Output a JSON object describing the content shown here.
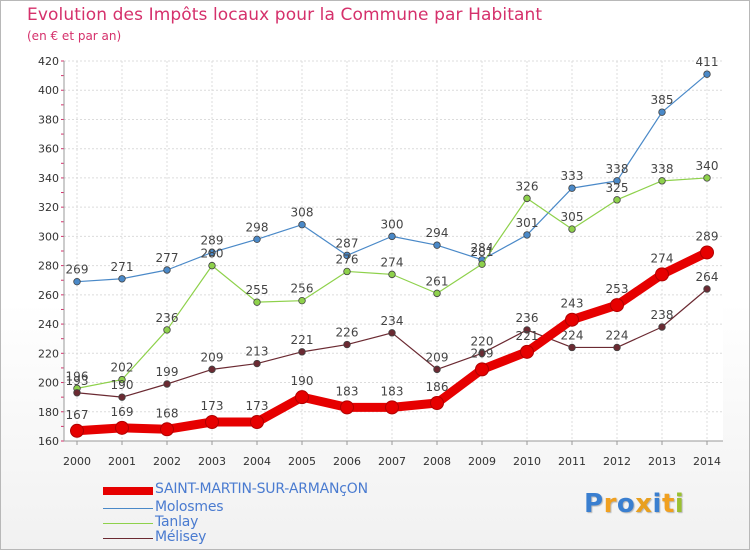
{
  "header": {
    "title": "Evolution des Impôts locaux pour la Commune par Habitant",
    "subtitle": "(en € et par an)"
  },
  "logo": {
    "text": "Proxiti"
  },
  "chart_data": {
    "type": "line",
    "title": "Evolution des Impôts locaux pour la Commune par Habitant",
    "subtitle": "(en € et par an)",
    "xlabel": "",
    "ylabel": "",
    "x": [
      "2000",
      "2001",
      "2002",
      "2003",
      "2004",
      "2005",
      "2006",
      "2007",
      "2008",
      "2009",
      "2010",
      "2011",
      "2012",
      "2013",
      "2014"
    ],
    "ylim": [
      160,
      420
    ],
    "yticks": [
      160,
      180,
      200,
      220,
      240,
      260,
      280,
      300,
      320,
      340,
      360,
      380,
      400,
      420
    ],
    "grid": true,
    "legend_position": "bottom-left",
    "series": [
      {
        "name": "SAINT-MARTIN-SUR-ARMANçON",
        "color": "#e60000",
        "values": [
          167,
          169,
          168,
          173,
          173,
          190,
          183,
          183,
          186,
          209,
          221,
          243,
          253,
          274,
          289
        ]
      },
      {
        "name": "Molosmes",
        "color": "#4a89c8",
        "values": [
          269,
          271,
          277,
          289,
          298,
          308,
          287,
          300,
          294,
          284,
          301,
          333,
          338,
          385,
          411
        ]
      },
      {
        "name": "Tanlay",
        "color": "#8ed14b",
        "values": [
          196,
          202,
          236,
          280,
          255,
          256,
          276,
          274,
          261,
          281,
          326,
          305,
          325,
          338,
          340
        ]
      },
      {
        "name": "Mélisey",
        "color": "#6b2a32",
        "values": [
          193,
          190,
          199,
          209,
          213,
          221,
          226,
          234,
          209,
          220,
          236,
          224,
          224,
          238,
          264
        ]
      }
    ]
  }
}
